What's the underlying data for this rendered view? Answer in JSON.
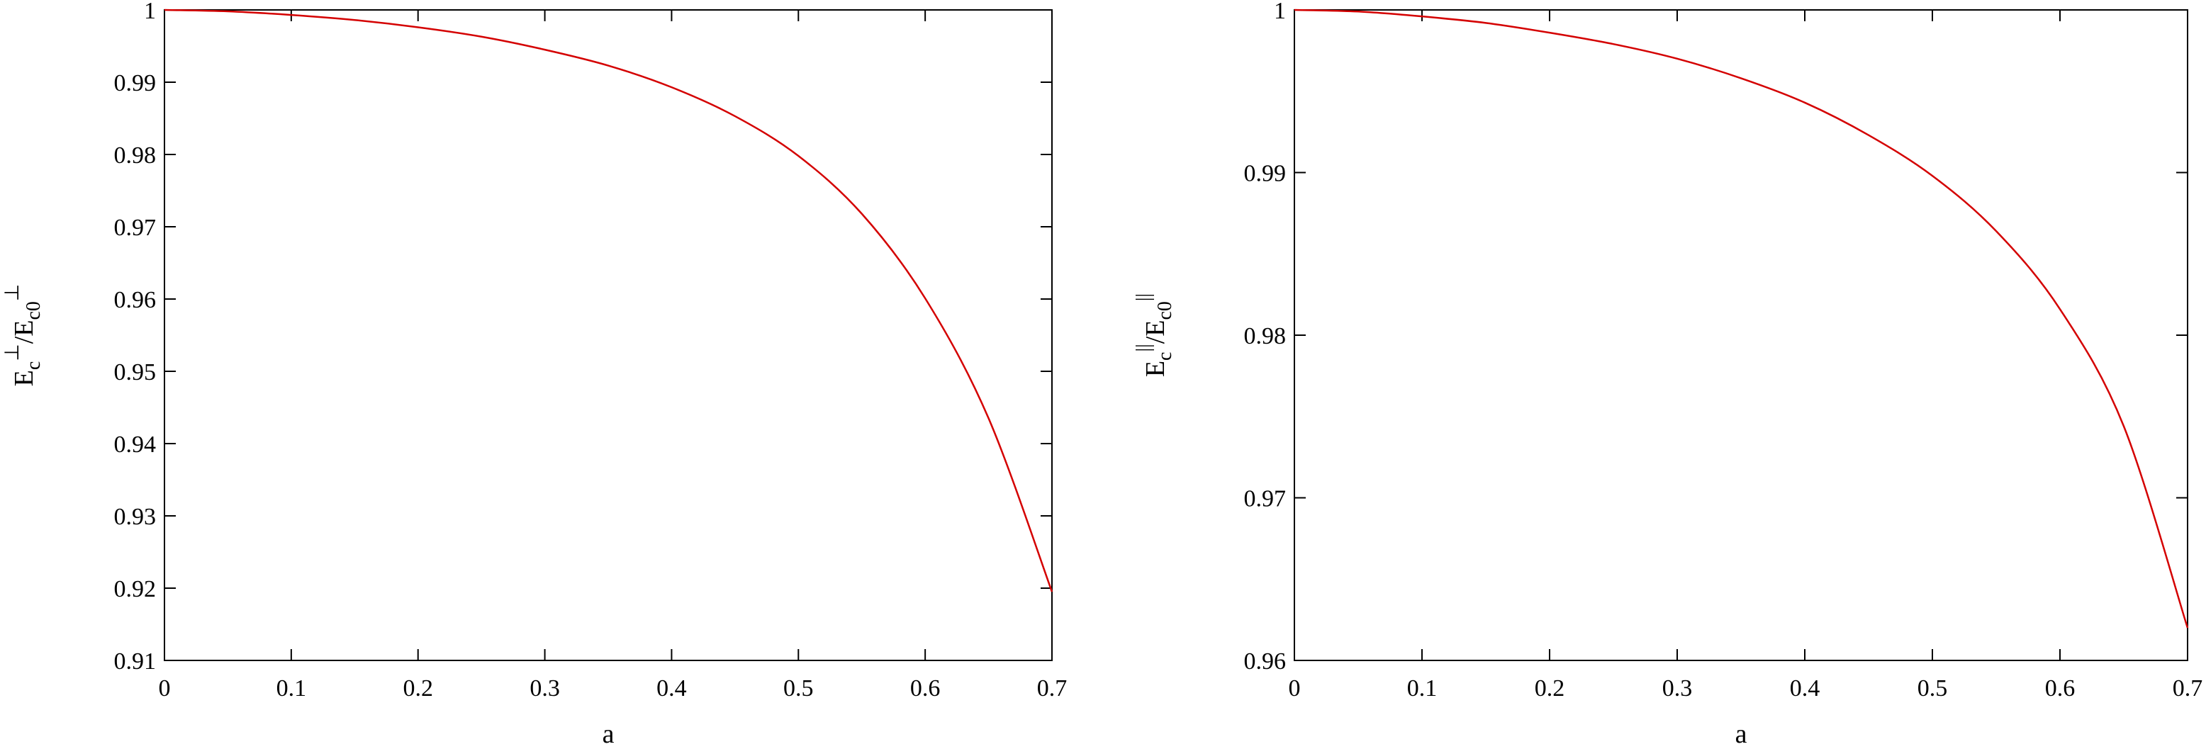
{
  "chart_data": [
    {
      "type": "line",
      "xlabel": "a",
      "ylabel": {
        "base": "E",
        "sub1": "c",
        "sup1": "⊥",
        "mid": "/E",
        "sub2": "c0",
        "sup2": "⊥"
      },
      "xlim": [
        0,
        0.7
      ],
      "ylim": [
        0.91,
        1.0
      ],
      "x_ticks": [
        "0",
        "0.1",
        "0.2",
        "0.3",
        "0.4",
        "0.5",
        "0.6",
        "0.7"
      ],
      "y_ticks": [
        "0.91",
        "0.92",
        "0.93",
        "0.94",
        "0.95",
        "0.96",
        "0.97",
        "0.98",
        "0.99",
        "1"
      ],
      "series": [
        {
          "color": "#d40000",
          "x": [
            0,
            0.05,
            0.1,
            0.15,
            0.2,
            0.25,
            0.3,
            0.35,
            0.4,
            0.45,
            0.5,
            0.55,
            0.6,
            0.65,
            0.7
          ],
          "y": [
            1.0,
            0.9998,
            0.9993,
            0.9986,
            0.9976,
            0.9963,
            0.9945,
            0.9923,
            0.9893,
            0.9853,
            0.9798,
            0.9718,
            0.9601,
            0.9435,
            0.9195
          ]
        }
      ]
    },
    {
      "type": "line",
      "xlabel": "a",
      "ylabel": {
        "base": "E",
        "sub1": "c",
        "sup1": "||",
        "mid": "/E",
        "sub2": "c0",
        "sup2": "||"
      },
      "xlim": [
        0,
        0.7
      ],
      "ylim": [
        0.96,
        1.0
      ],
      "x_ticks": [
        "0",
        "0.1",
        "0.2",
        "0.3",
        "0.4",
        "0.5",
        "0.6",
        "0.7"
      ],
      "y_ticks": [
        "0.96",
        "0.97",
        "0.98",
        "0.99",
        "1"
      ],
      "series": [
        {
          "color": "#d40000",
          "x": [
            0,
            0.05,
            0.1,
            0.15,
            0.2,
            0.25,
            0.3,
            0.35,
            0.4,
            0.45,
            0.5,
            0.55,
            0.6,
            0.65,
            0.7
          ],
          "y": [
            1.0,
            0.9999,
            0.9996,
            0.9992,
            0.9986,
            0.9979,
            0.997,
            0.9958,
            0.9943,
            0.9923,
            0.9898,
            0.9864,
            0.9816,
            0.9744,
            0.962
          ]
        }
      ]
    }
  ]
}
